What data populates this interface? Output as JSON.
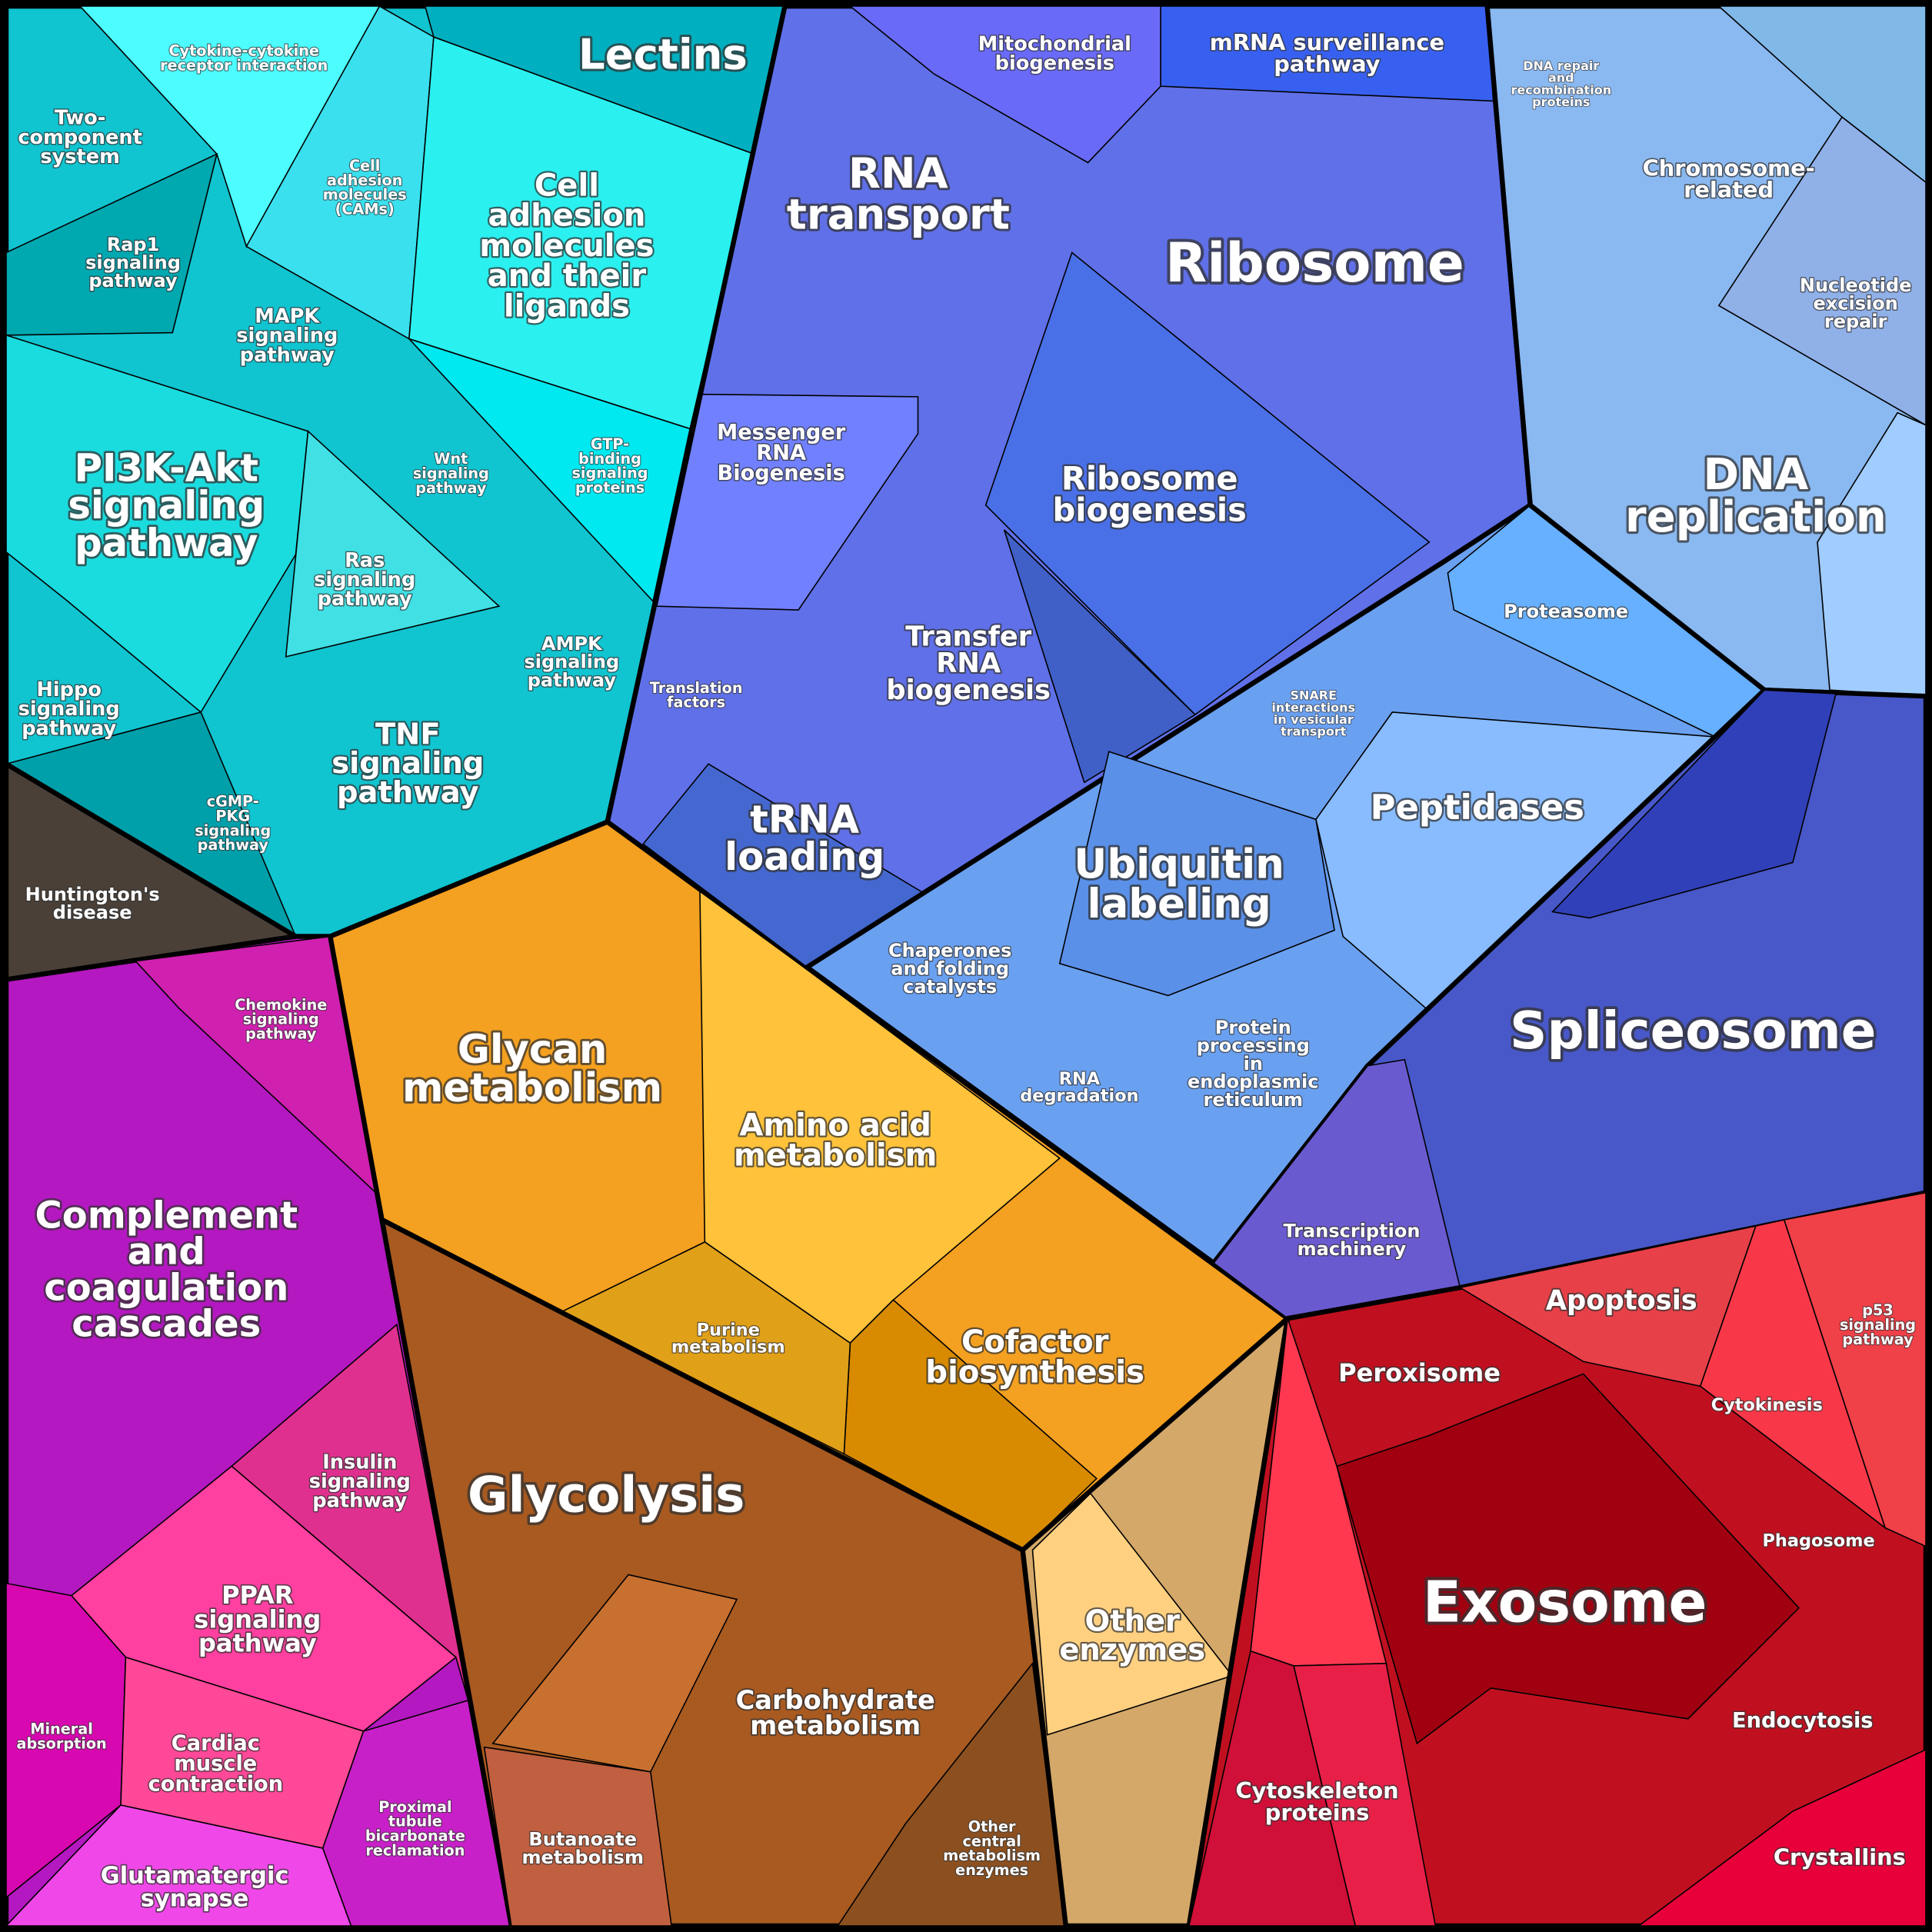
{
  "labels": [
    [
      "Cytokine-cytokine",
      "receptor interaction"
    ],
    [
      "Lectins"
    ],
    [
      "Two-",
      "component",
      "system"
    ],
    [
      "Cell",
      "adhesion",
      "molecules",
      "(CAMs)"
    ],
    [
      "Cell",
      "adhesion",
      "molecules",
      "and their",
      "ligands"
    ],
    [
      "Rap1",
      "signaling",
      "pathway"
    ],
    [
      "MAPK",
      "signaling",
      "pathway"
    ],
    [
      "PI3K-Akt",
      "signaling",
      "pathway"
    ],
    [
      "Wnt",
      "signaling",
      "pathway"
    ],
    [
      "GTP-",
      "binding",
      "signaling",
      "proteins"
    ],
    [
      "Ras",
      "signaling",
      "pathway"
    ],
    [
      "AMPK",
      "signaling",
      "pathway"
    ],
    [
      "Hippo",
      "signaling",
      "pathway"
    ],
    [
      "TNF",
      "signaling",
      "pathway"
    ],
    [
      "cGMP-",
      "PKG",
      "signaling",
      "pathway"
    ],
    [
      "Huntington's",
      "disease"
    ],
    [
      "Mitochondrial",
      "biogenesis"
    ],
    [
      "mRNA surveillance",
      "pathway"
    ],
    [
      "DNA repair",
      "and",
      "recombination",
      "proteins"
    ],
    [
      "RNA",
      "transport"
    ],
    [
      "Ribosome"
    ],
    [
      "Chromosome-",
      "related"
    ],
    [
      "Nucleotide",
      "excision",
      "repair"
    ],
    [
      "Messenger",
      "RNA",
      "Biogenesis"
    ],
    [
      "Ribosome",
      "biogenesis"
    ],
    [
      "DNA",
      "replication"
    ],
    [
      "Proteasome"
    ],
    [
      "Transfer",
      "RNA",
      "biogenesis"
    ],
    [
      "SNARE",
      "interactions",
      "in vesicular",
      "transport"
    ],
    [
      "Translation",
      "factors"
    ],
    [
      "Peptidases"
    ],
    [
      "tRNA",
      "loading"
    ],
    [
      "Ubiquitin",
      "labeling"
    ],
    [
      "Chaperones",
      "and folding",
      "catalysts"
    ],
    [
      "Spliceosome"
    ],
    [
      "Chemokine",
      "signaling",
      "pathway"
    ],
    [
      "Glycan",
      "metabolism"
    ],
    [
      "Protein",
      "processing",
      "in",
      "endoplasmic",
      "reticulum"
    ],
    [
      "RNA",
      "degradation"
    ],
    [
      "Amino acid",
      "metabolism"
    ],
    [
      "Transcription",
      "machinery"
    ],
    [
      "Complement",
      "and",
      "coagulation",
      "cascades"
    ],
    [
      "Apoptosis"
    ],
    [
      "p53",
      "signaling",
      "pathway"
    ],
    [
      "Purine",
      "metabolism"
    ],
    [
      "Cofactor",
      "biosynthesis"
    ],
    [
      "Peroxisome"
    ],
    [
      "Cytokinesis"
    ],
    [
      "Insulin",
      "signaling",
      "pathway"
    ],
    [
      "Glycolysis"
    ],
    [
      "Phagosome"
    ],
    [
      "Exosome"
    ],
    [
      "PPAR",
      "signaling",
      "pathway"
    ],
    [
      "Other",
      "enzymes"
    ],
    [
      "Carbohydrate",
      "metabolism"
    ],
    [
      "Endocytosis"
    ],
    [
      "Mineral",
      "absorption"
    ],
    [
      "Cardiac",
      "muscle",
      "contraction"
    ],
    [
      "Proximal",
      "tubule",
      "bicarbonate",
      "reclamation"
    ],
    [
      "Cytoskeleton",
      "proteins"
    ],
    [
      "Butanoate",
      "metabolism"
    ],
    [
      "Other",
      "central",
      "metabolism",
      "enzymes"
    ],
    [
      "Crystallins"
    ],
    [
      "Glutamatergic",
      "synapse"
    ]
  ]
}
